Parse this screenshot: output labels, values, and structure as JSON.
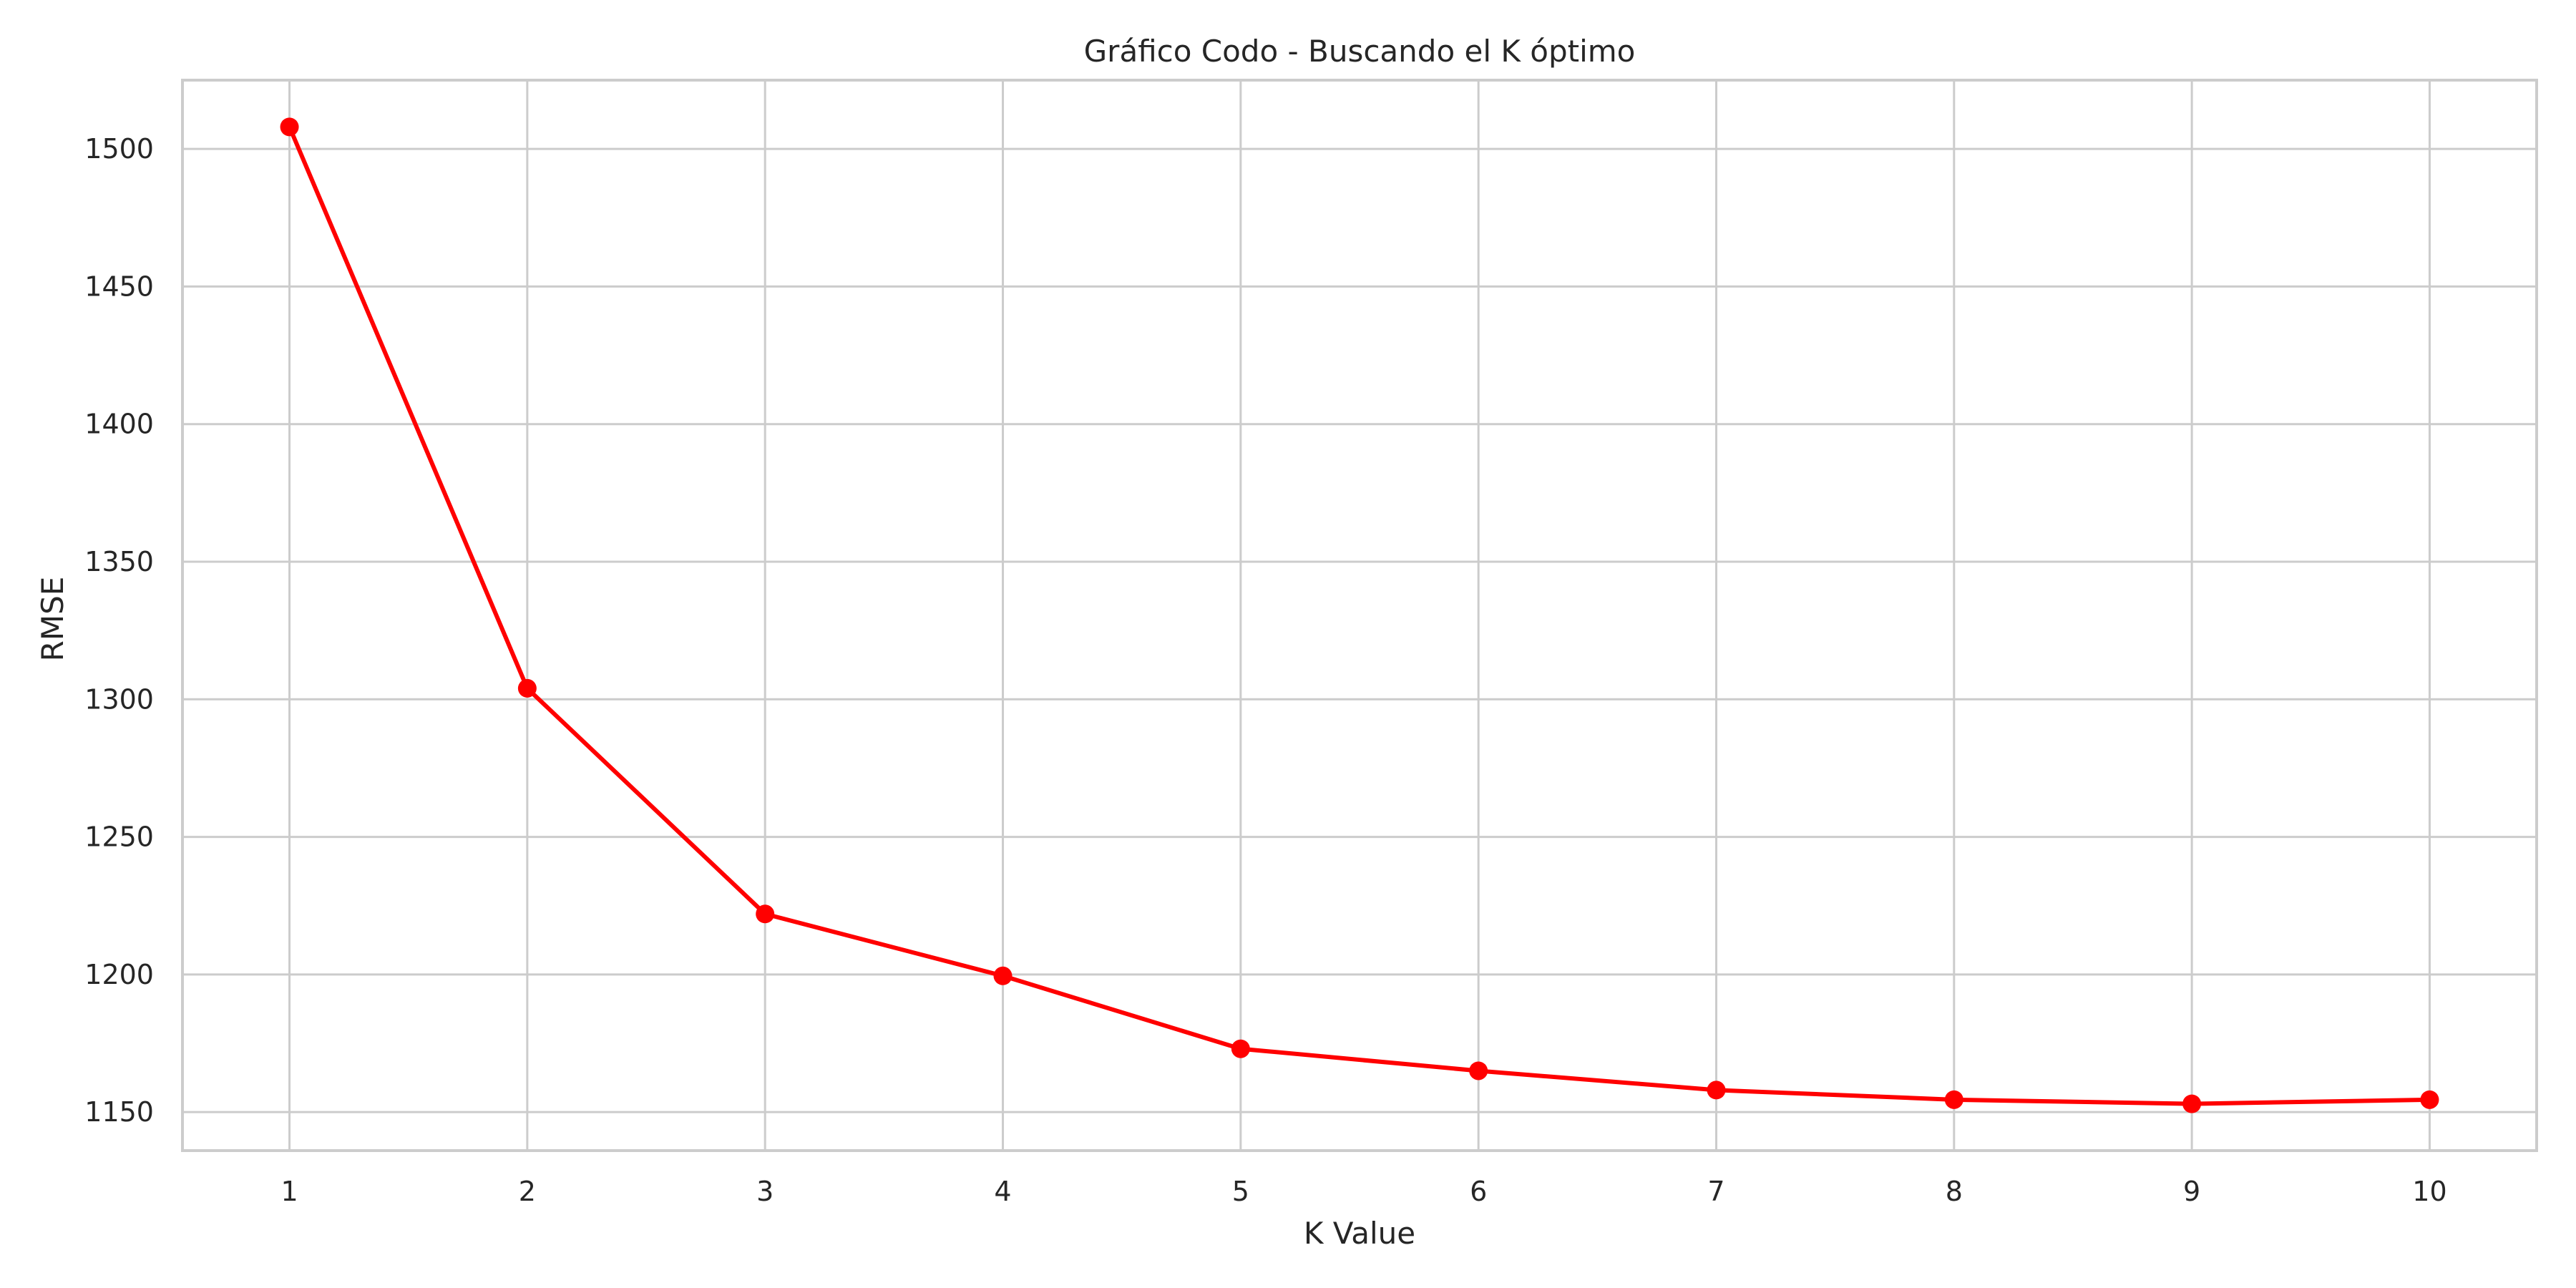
{
  "chart_data": {
    "type": "line",
    "title": "Gráfico Codo - Buscando el K óptimo",
    "xlabel": "K Value",
    "ylabel": "RMSE",
    "x": [
      1,
      2,
      3,
      4,
      5,
      6,
      7,
      8,
      9,
      10
    ],
    "series": [
      {
        "values": [
          1508,
          1304,
          1222,
          1199.5,
          1173,
          1165,
          1158,
          1154.5,
          1153,
          1154.5
        ]
      }
    ],
    "xlim": [
      0.55,
      10.45
    ],
    "ylim": [
      1136,
      1525
    ],
    "xticks": [
      1,
      2,
      3,
      4,
      5,
      6,
      7,
      8,
      9,
      10
    ],
    "yticks": [
      1150,
      1200,
      1250,
      1300,
      1350,
      1400,
      1450,
      1500
    ],
    "grid": true,
    "line_color": "#ff0000",
    "marker": "circle"
  }
}
